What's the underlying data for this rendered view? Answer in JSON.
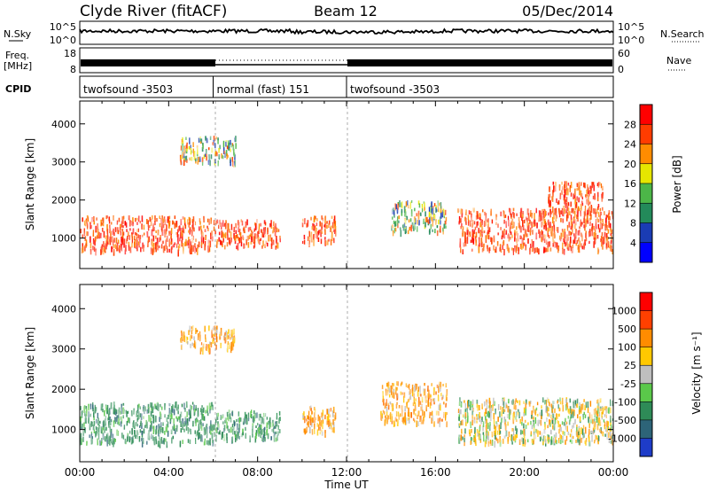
{
  "header": {
    "station": "Clyde River (fitACF)",
    "beam": "Beam 12",
    "date": "05/Dec/2014"
  },
  "noise_panel": {
    "left_label": "N.Sky",
    "right_label": "N.Search",
    "left_ticks": [
      "10^5",
      "10^0"
    ],
    "right_ticks": [
      "10^5",
      "10^0"
    ]
  },
  "freq_panel": {
    "left_label_line1": "Freq.",
    "left_label_line2": "[MHz]",
    "right_label": "Nave",
    "left_ticks": [
      "18",
      "8"
    ],
    "right_ticks": [
      "60",
      "0"
    ]
  },
  "cpid_panel": {
    "label": "CPID",
    "segments": [
      {
        "label": "twofsound -3503",
        "start_hour": 0,
        "end_hour": 6
      },
      {
        "label": "normal (fast) 151",
        "start_hour": 6,
        "end_hour": 12
      },
      {
        "label": "twofsound -3503",
        "start_hour": 12,
        "end_hour": 24
      }
    ]
  },
  "chart_data": [
    {
      "type": "heatmap",
      "title": "",
      "parameter": "Power",
      "ylabel": "Slant Range [km]",
      "ylim": [
        200,
        4600
      ],
      "yticks": [
        "1000",
        "2000",
        "3000",
        "4000"
      ],
      "xlim_hours": [
        0,
        24
      ],
      "colorbar": {
        "label": "Power [dB]",
        "ticks": [
          "28",
          "24",
          "20",
          "16",
          "12",
          "8",
          "4"
        ],
        "colors": [
          "#0000ff",
          "#1a3cb4",
          "#238a5a",
          "#4cb648",
          "#e6e600",
          "#ff8c00",
          "#ff3c00",
          "#ff0000"
        ]
      },
      "regions": [
        {
          "start_hour": 0,
          "end_hour": 6,
          "range_km": [
            700,
            1600
          ],
          "level": "high"
        },
        {
          "start_hour": 6,
          "end_hour": 9,
          "range_km": [
            800,
            1500
          ],
          "level": "high"
        },
        {
          "start_hour": 4.5,
          "end_hour": 7,
          "range_km": [
            3000,
            3700
          ],
          "level": "medium"
        },
        {
          "start_hour": 10,
          "end_hour": 11.5,
          "range_km": [
            900,
            1600
          ],
          "level": "high"
        },
        {
          "start_hour": 14,
          "end_hour": 16.5,
          "range_km": [
            1200,
            2000
          ],
          "level": "medium"
        },
        {
          "start_hour": 17,
          "end_hour": 24,
          "range_km": [
            700,
            1800
          ],
          "level": "high"
        },
        {
          "start_hour": 21,
          "end_hour": 23.5,
          "range_km": [
            1700,
            2500
          ],
          "level": "high"
        }
      ]
    },
    {
      "type": "heatmap",
      "title": "",
      "parameter": "Velocity",
      "ylabel": "Slant Range [km]",
      "xlabel": "Time UT",
      "ylim": [
        200,
        4600
      ],
      "yticks": [
        "1000",
        "2000",
        "3000",
        "4000"
      ],
      "xticks": [
        "00:00",
        "04:00",
        "08:00",
        "12:00",
        "16:00",
        "20:00",
        "00:00"
      ],
      "xlim_hours": [
        0,
        24
      ],
      "colorbar": {
        "label": "Velocity [m s⁻¹]",
        "ticks": [
          "1000",
          "500",
          "100",
          "25",
          "-25",
          "-100",
          "-500",
          "-1000"
        ],
        "colors": [
          "#1e3cc8",
          "#2d6478",
          "#2e8b57",
          "#5ac84a",
          "#bebebe",
          "#ffc800",
          "#ff8c00",
          "#ff4000",
          "#ff0000"
        ]
      },
      "regions": [
        {
          "start_hour": 0,
          "end_hour": 6,
          "range_km": [
            700,
            1700
          ],
          "level": "green"
        },
        {
          "start_hour": 6,
          "end_hour": 9,
          "range_km": [
            800,
            1500
          ],
          "level": "green"
        },
        {
          "start_hour": 4.5,
          "end_hour": 7,
          "range_km": [
            3000,
            3600
          ],
          "level": "orange"
        },
        {
          "start_hour": 10,
          "end_hour": 11.5,
          "range_km": [
            900,
            1600
          ],
          "level": "orange"
        },
        {
          "start_hour": 13.5,
          "end_hour": 16.5,
          "range_km": [
            1200,
            2200
          ],
          "level": "orange"
        },
        {
          "start_hour": 17,
          "end_hour": 24,
          "range_km": [
            700,
            1800
          ],
          "level": "mixed"
        }
      ]
    }
  ]
}
